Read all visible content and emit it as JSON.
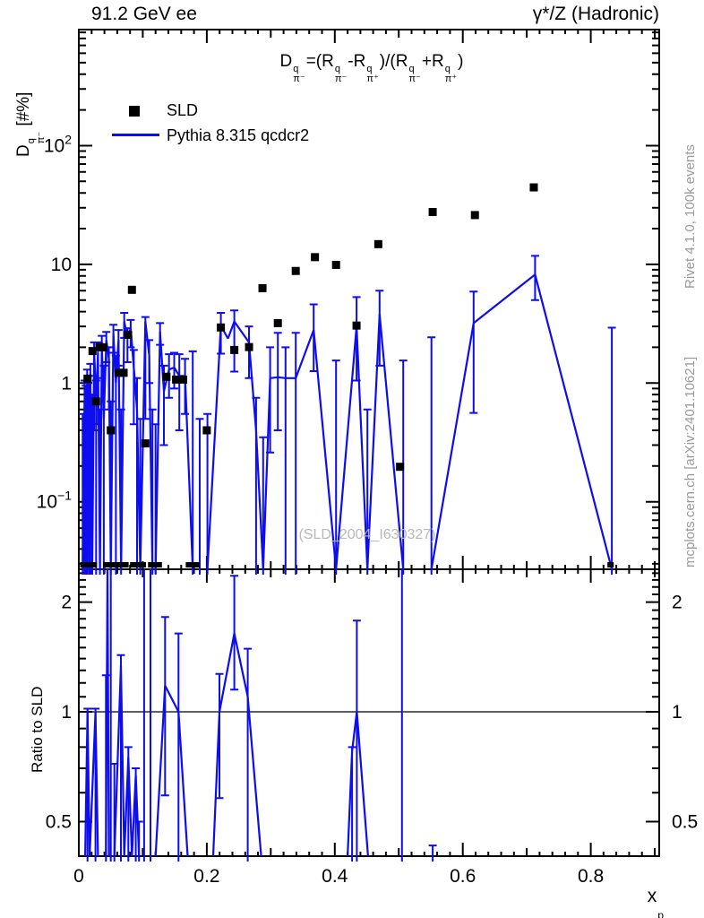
{
  "header": {
    "left": "91.2 GeV ee",
    "right": "γ*/Z (Hadronic)"
  },
  "side": {
    "top": "Rivet 4.1.0,  100k events",
    "bottom": "mcplots.cern.ch [arXiv:2401.10621]"
  },
  "watermark": "(SLD_2004_I630327)",
  "colors": {
    "mc": "#0d0df0",
    "data": "#000000",
    "frame": "#000000",
    "side_text": "#9a9a9a",
    "watermark": "#b9b9b9"
  },
  "legend": [
    {
      "label": "SLD",
      "type": "marker"
    },
    {
      "label": "Pythia 8.315 qcdcr2",
      "type": "line"
    }
  ],
  "labels": {
    "ylabel_main_tokens": [
      {
        "b": "D",
        "sup": "q",
        "sub": "π⁻"
      },
      {
        "t": " [#%]"
      }
    ],
    "ylabel_ratio": "Ratio to SLD",
    "xlabel_tokens": [
      {
        "b": "x",
        "sub": "p"
      }
    ],
    "formula_tokens": [
      {
        "b": "D",
        "sup": "q",
        "sub": "π⁻"
      },
      {
        "t": "=("
      },
      {
        "b": "R",
        "sup": "q",
        "sub": "π⁻"
      },
      {
        "t": "-"
      },
      {
        "b": "R",
        "sup": "q",
        "sub": "π⁺"
      },
      {
        "t": ")/("
      },
      {
        "b": "R",
        "sup": "q",
        "sub": "π⁻"
      },
      {
        "t": "+"
      },
      {
        "b": "R",
        "sup": "q",
        "sub": "π⁺"
      },
      {
        "t": ")"
      }
    ]
  },
  "chart_data": {
    "type": "line",
    "title": "D^q_pi- = (R^q_pi- - R^q_pi+)/(R^q_pi- + R^q_pi+)",
    "xlabel": "x_p",
    "ylabel": "D^q_pi- [#%]",
    "ylabel_ratio": "Ratio to SLD",
    "xlim": [
      0,
      0.907
    ],
    "ylim_main": [
      0.027,
      950
    ],
    "ylim_ratio": [
      0.402,
      2.46
    ],
    "log_y_main": true,
    "log_y_ratio": true,
    "grid": false,
    "legend_position": "top-left",
    "x_ticks": {
      "major": [
        0,
        0.2,
        0.4,
        0.6,
        0.8
      ],
      "labels": [
        "0",
        "0.2",
        "0.4",
        "0.6",
        "0.8"
      ],
      "medium": [
        0.1,
        0.3,
        0.5,
        0.7,
        0.9
      ],
      "minor_step": 0.02
    },
    "y_ticks_main": [
      {
        "v": 0.1,
        "t": "10",
        "e": "−1"
      },
      {
        "v": 1,
        "t": "1"
      },
      {
        "v": 10,
        "t": "10"
      },
      {
        "v": 100,
        "t": "10",
        "e": "2"
      }
    ],
    "y_ticks_ratio": [
      {
        "v": 0.5,
        "t": "0.5"
      },
      {
        "v": 1,
        "t": "1"
      },
      {
        "v": 2,
        "t": "2"
      }
    ],
    "ratio_reference": 1,
    "series": {
      "sld": {
        "name": "SLD",
        "points": [
          [
            0.0136,
            1.09
          ],
          [
            0.0214,
            1.86
          ],
          [
            0.027,
            0.7
          ],
          [
            0.0322,
            2.01
          ],
          [
            0.038,
            2.0
          ],
          [
            0.05,
            0.4
          ],
          [
            0.062,
            1.22
          ],
          [
            0.07,
            1.22
          ],
          [
            0.077,
            2.55
          ],
          [
            0.083,
            6.1
          ],
          [
            0.104,
            0.31
          ],
          [
            0.137,
            1.13
          ],
          [
            0.152,
            1.07
          ],
          [
            0.163,
            1.07
          ],
          [
            0.2,
            0.4
          ],
          [
            0.222,
            2.94
          ],
          [
            0.243,
            1.9
          ],
          [
            0.266,
            2.01
          ],
          [
            0.287,
            6.3
          ],
          [
            0.311,
            3.2
          ],
          [
            0.339,
            8.8
          ],
          [
            0.369,
            11.5
          ],
          [
            0.402,
            9.9
          ],
          [
            0.434,
            3.05
          ],
          [
            0.468,
            14.8
          ],
          [
            0.502,
            0.197
          ],
          [
            0.553,
            27.6
          ],
          [
            0.619,
            26.0
          ],
          [
            0.711,
            44.5
          ]
        ],
        "below_range_x": [
          0.007,
          0.01,
          0.0165,
          0.0235,
          0.043,
          0.047,
          0.053,
          0.058,
          0.064,
          0.068,
          0.073,
          0.085,
          0.09,
          0.095,
          0.1,
          0.113,
          0.119,
          0.125,
          0.172,
          0.178,
          0.184,
          0.831
        ]
      },
      "pythia": {
        "name": "Pythia 8.315 qcdcr2",
        "points": [
          [
            0.006,
            0.027,
            null,
            0.55
          ],
          [
            0.009,
            0.7,
            0.027,
            1.05
          ],
          [
            0.011,
            0.027,
            null,
            0.95
          ],
          [
            0.013,
            1.1,
            0.027,
            1.3
          ],
          [
            0.016,
            0.027,
            null,
            1.15
          ],
          [
            0.018,
            1.2,
            0.027,
            1.45
          ],
          [
            0.021,
            0.027,
            null,
            0.8
          ],
          [
            0.024,
            1.9,
            0.4,
            2.2
          ],
          [
            0.027,
            0.7,
            0.027,
            1.05
          ],
          [
            0.03,
            1.8,
            0.45,
            2.2
          ],
          [
            0.033,
            0.027,
            null,
            0.6
          ],
          [
            0.036,
            2.1,
            1.1,
            2.5
          ],
          [
            0.039,
            0.5,
            0.027,
            1.4
          ],
          [
            0.043,
            2.3,
            1.5,
            2.7
          ],
          [
            0.047,
            1.6,
            0.6,
            2.0
          ],
          [
            0.05,
            0.027,
            null,
            0.7
          ],
          [
            0.054,
            2.6,
            1.8,
            3.1
          ],
          [
            0.058,
            1.0,
            0.027,
            1.7
          ],
          [
            0.062,
            2.3,
            1.4,
            2.8
          ],
          [
            0.066,
            0.027,
            null,
            0.6
          ],
          [
            0.071,
            3.3,
            2.4,
            3.9
          ],
          [
            0.076,
            2.4,
            1.5,
            2.9
          ],
          [
            0.081,
            2.9,
            2.0,
            3.4
          ],
          [
            0.086,
            1.35,
            0.45,
            1.9
          ],
          [
            0.091,
            0.6,
            0.027,
            1.1
          ],
          [
            0.096,
            0.027,
            null,
            0.5
          ],
          [
            0.104,
            3.3,
            0.5,
            3.6
          ],
          [
            0.11,
            1.7,
            1.0,
            2.3
          ],
          [
            0.115,
            0.027,
            null,
            0.6
          ],
          [
            0.12,
            0.027,
            null,
            0.45
          ],
          [
            0.127,
            2.7,
            2.1,
            3.2
          ],
          [
            0.133,
            0.85,
            0.3,
            1.4
          ],
          [
            0.141,
            1.3,
            0.75,
            1.75
          ],
          [
            0.149,
            1.35,
            0.9,
            1.8
          ],
          [
            0.157,
            1.15,
            0.4,
            1.75
          ],
          [
            0.166,
            1.15,
            0.55,
            1.6
          ],
          [
            0.178,
            0.027,
            null,
            1.85
          ],
          [
            0.189,
            0.027,
            null,
            0.5
          ],
          [
            0.201,
            0.027,
            null,
            0.55
          ],
          [
            0.222,
            3.05,
            1.77,
            3.9
          ],
          [
            0.233,
            2.37,
            null,
            null
          ],
          [
            0.243,
            3.3,
            1.25,
            4.1
          ],
          [
            0.266,
            2.2,
            1.1,
            3.0
          ],
          [
            0.277,
            0.4,
            0.027,
            0.75
          ],
          [
            0.288,
            0.027,
            null,
            0.35
          ],
          [
            0.299,
            1.1,
            0.26,
            2.0
          ],
          [
            0.311,
            1.12,
            0.4,
            2.65
          ],
          [
            0.323,
            1.1,
            null,
            2.0
          ],
          [
            0.339,
            1.1,
            null,
            2.65
          ],
          [
            0.367,
            2.8,
            1.26,
            4.6
          ],
          [
            0.402,
            0.027,
            null,
            1.55
          ],
          [
            0.434,
            3.0,
            1.05,
            5.3
          ],
          [
            0.451,
            0.027,
            null,
            0.6
          ],
          [
            0.47,
            3.8,
            1.4,
            6.0
          ],
          [
            0.507,
            0.027,
            null,
            1.55
          ],
          [
            0.551,
            0.027,
            null,
            2.43
          ],
          [
            0.617,
            3.2,
            0.56,
            5.9
          ],
          [
            0.713,
            8.2,
            5.0,
            11.8
          ],
          [
            0.833,
            0.027,
            null,
            2.93
          ]
        ]
      },
      "ratio": {
        "name": "Pythia 8.315 qcdcr2 / SLD",
        "points": [
          [
            0.01,
            0.402,
            null,
            null
          ],
          [
            0.0136,
            1.0,
            0.402,
            1.02
          ],
          [
            0.017,
            0.402,
            null,
            null
          ],
          [
            0.026,
            1.0,
            0.402,
            1.02
          ],
          [
            0.03,
            0.402,
            null,
            null
          ],
          [
            0.0424,
            0.402,
            null,
            1.26
          ],
          [
            0.0448,
            2.46,
            null,
            null
          ],
          [
            0.047,
            0.402,
            null,
            null
          ],
          [
            0.05,
            0.402,
            null,
            2.46
          ],
          [
            0.0556,
            0.402,
            null,
            0.72
          ],
          [
            0.0658,
            1.34,
            0.402,
            1.43
          ],
          [
            0.071,
            0.402,
            null,
            null
          ],
          [
            0.0774,
            0.75,
            0.402,
            0.8
          ],
          [
            0.083,
            0.402,
            null,
            null
          ],
          [
            0.089,
            0.67,
            0.402,
            0.7
          ],
          [
            0.094,
            0.402,
            null,
            0.5
          ],
          [
            0.102,
            0.402,
            null,
            2.46
          ],
          [
            0.112,
            0.402,
            null,
            2.46
          ],
          [
            0.12,
            0.402,
            null,
            null
          ],
          [
            0.1348,
            1.18,
            0.59,
            1.82
          ],
          [
            0.1558,
            1.0,
            0.402,
            1.64
          ],
          [
            0.17,
            0.402,
            null,
            null
          ],
          [
            0.21,
            0.402,
            null,
            null
          ],
          [
            0.2198,
            1.0,
            0.58,
            1.27
          ],
          [
            0.243,
            1.64,
            1.15,
            2.36
          ],
          [
            0.264,
            1.1,
            0.402,
            1.49
          ],
          [
            0.285,
            0.402,
            null,
            null
          ],
          [
            0.42,
            0.402,
            null,
            null
          ],
          [
            0.427,
            0.78,
            0.402,
            0.8
          ],
          [
            0.4345,
            1.0,
            0.402,
            1.78
          ],
          [
            0.452,
            0.402,
            null,
            null
          ],
          [
            0.505,
            0.402,
            null,
            2.46
          ],
          [
            0.553,
            0.402,
            null,
            0.43
          ]
        ]
      }
    }
  }
}
